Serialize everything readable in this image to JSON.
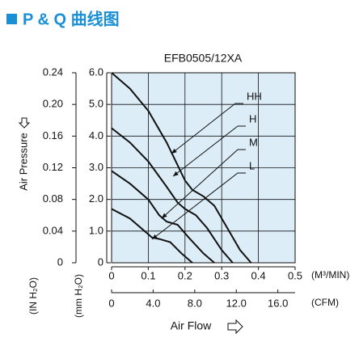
{
  "header": {
    "title": "P & Q 曲线图"
  },
  "chart_data": {
    "type": "line",
    "title": "EFB0505/12XA",
    "x_label": "Air Flow",
    "x_unit": "(M³/MIN)",
    "x2_unit": "(CFM)",
    "y_label": "Air Pressure",
    "y_unit": "(mm H₂O)",
    "y2_unit": "(IN H₂O)",
    "xlim": [
      0,
      0.5
    ],
    "xticks": [
      0,
      0.1,
      0.2,
      0.3,
      0.4,
      0.5
    ],
    "x2lim": [
      0,
      17.66
    ],
    "x2ticks": [
      0,
      {
        "value": 4,
        "label": "4.0"
      },
      {
        "value": 8,
        "label": "8.0"
      },
      {
        "value": 12,
        "label": "12.0"
      },
      {
        "value": 16,
        "label": "16.0"
      }
    ],
    "ylim": [
      0,
      6
    ],
    "yticks": [
      0,
      {
        "value": 1,
        "label": "1.0"
      },
      {
        "value": 2,
        "label": "2.0"
      },
      {
        "value": 3,
        "label": "3.0"
      },
      {
        "value": 4,
        "label": "4.0"
      },
      {
        "value": 5,
        "label": "5.0"
      },
      {
        "value": 6,
        "label": "6.0"
      }
    ],
    "y2lim": [
      0,
      0.24
    ],
    "y2ticks": [
      0,
      0.04,
      0.08,
      0.12,
      0.16,
      {
        "value": 0.2,
        "label": "0.20"
      },
      0.24
    ],
    "grid": true,
    "background": "#dcedf7",
    "series": [
      {
        "name": "HH",
        "color": "#111111",
        "x": [
          0,
          0.05,
          0.1,
          0.15,
          0.2,
          0.22,
          0.25,
          0.28,
          0.32,
          0.35,
          0.38
        ],
        "values": [
          6.0,
          5.5,
          4.8,
          3.8,
          2.6,
          2.3,
          2.1,
          1.8,
          1.0,
          0.4,
          0
        ]
      },
      {
        "name": "H",
        "color": "#111111",
        "x": [
          0,
          0.05,
          0.1,
          0.15,
          0.18,
          0.2,
          0.23,
          0.26,
          0.3,
          0.33
        ],
        "values": [
          4.25,
          3.8,
          3.2,
          2.4,
          1.9,
          1.7,
          1.5,
          1.1,
          0.4,
          0
        ]
      },
      {
        "name": "M",
        "color": "#111111",
        "x": [
          0,
          0.05,
          0.1,
          0.13,
          0.15,
          0.18,
          0.21,
          0.25,
          0.28
        ],
        "values": [
          2.9,
          2.5,
          2.0,
          1.5,
          1.3,
          1.2,
          0.8,
          0.3,
          0
        ]
      },
      {
        "name": "L",
        "color": "#111111",
        "x": [
          0,
          0.05,
          0.1,
          0.11,
          0.13,
          0.16,
          0.19,
          0.22
        ],
        "values": [
          1.7,
          1.4,
          0.9,
          0.8,
          0.75,
          0.65,
          0.3,
          0
        ]
      }
    ]
  }
}
